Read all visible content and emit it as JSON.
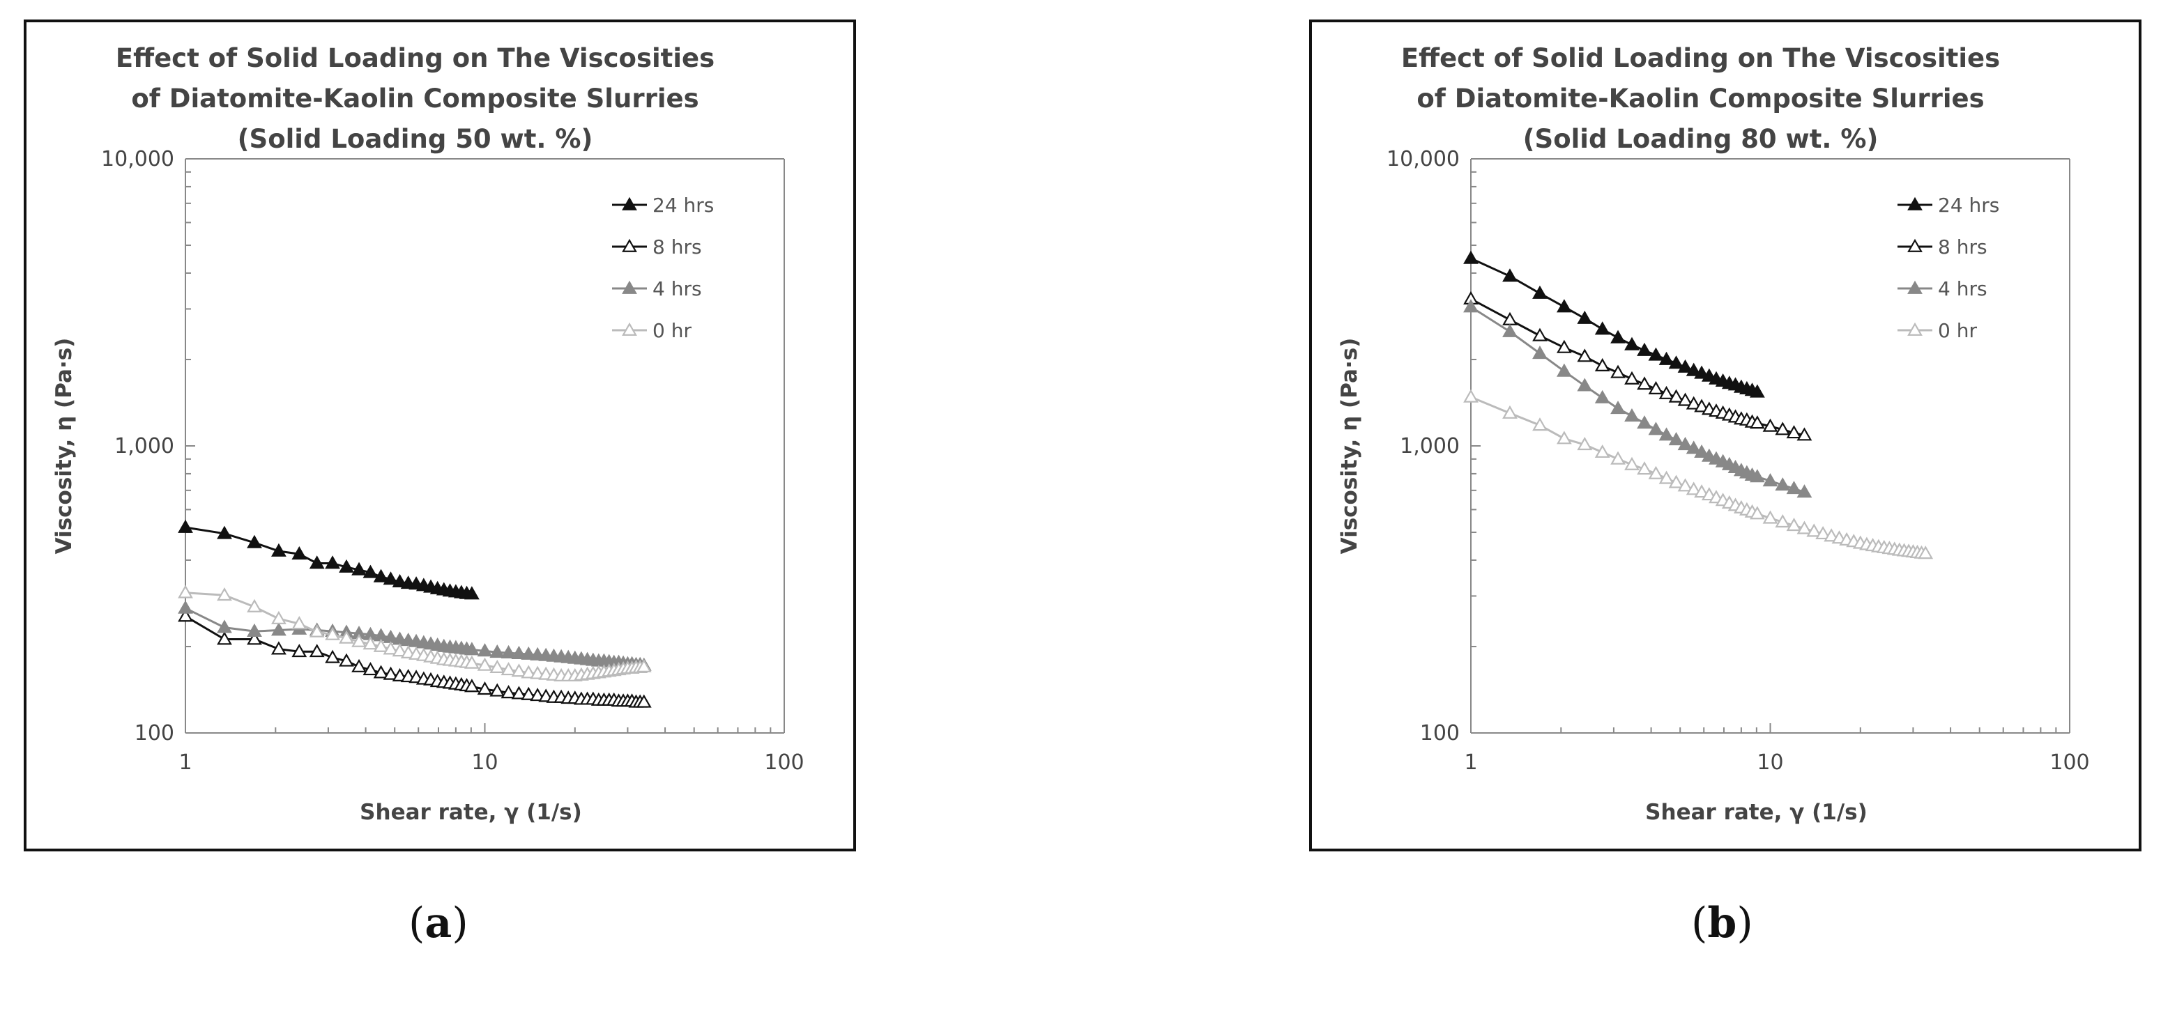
{
  "chart_data": [
    {
      "type": "line",
      "title": [
        "Effect of Solid Loading on The Viscosities",
        "of Diatomite-Kaolin Composite Slurries",
        "(Solid Loading 50 wt. %)"
      ],
      "xlabel": "Shear rate, γ (1/s)",
      "ylabel": "Viscosity, η (Pa·s)",
      "xscale": "log",
      "yscale": "log",
      "xlim": [
        1,
        100
      ],
      "ylim": [
        100,
        10000
      ],
      "xticks": [
        "1",
        "10",
        "100"
      ],
      "yticks": [
        "100",
        "1,000",
        "10,000"
      ],
      "grid": false,
      "legend_position": "top-right",
      "series": [
        {
          "name": "24 hrs",
          "color": "#111111",
          "marker": "filled-triangle",
          "x": [
            1,
            1.35,
            1.7,
            2.05,
            2.4,
            2.75,
            3.1,
            3.45,
            3.8,
            4.15,
            4.5,
            4.85,
            5.2,
            5.55,
            5.9,
            6.25,
            6.6,
            6.95,
            7.3,
            7.65,
            8,
            8.35,
            8.7,
            9.05
          ],
          "y": [
            520,
            495,
            460,
            430,
            420,
            390,
            390,
            378,
            370,
            362,
            350,
            343,
            336,
            332,
            330,
            326,
            322,
            318,
            315,
            312,
            310,
            308,
            306,
            305
          ]
        },
        {
          "name": "8 hrs",
          "color": "#111111",
          "marker": "open-triangle",
          "x": [
            1,
            1.35,
            1.7,
            2.05,
            2.4,
            2.75,
            3.1,
            3.45,
            3.8,
            4.15,
            4.5,
            4.85,
            5.2,
            5.55,
            5.9,
            6.25,
            6.6,
            6.95,
            7.3,
            7.65,
            8,
            8.35,
            8.7,
            9.05,
            10,
            11,
            12,
            13,
            14,
            15,
            16,
            17,
            18,
            19,
            20,
            21,
            22,
            23,
            24,
            25,
            26,
            27,
            28,
            29,
            30,
            31,
            32,
            33,
            34
          ],
          "y": [
            255,
            212,
            212,
            196,
            192,
            192,
            183,
            178,
            170,
            166,
            162,
            160,
            158,
            157,
            156,
            154,
            153,
            151,
            150,
            149,
            148,
            147,
            146,
            145,
            142,
            140,
            138,
            137,
            136,
            135,
            134,
            133,
            133,
            132,
            132,
            131,
            131,
            131,
            130,
            130,
            130,
            130,
            129,
            129,
            129,
            129,
            128,
            128,
            128
          ]
        },
        {
          "name": "4 hrs",
          "color": "#888888",
          "marker": "filled-triangle",
          "x": [
            1,
            1.35,
            1.7,
            2.05,
            2.4,
            2.75,
            3.1,
            3.45,
            3.8,
            4.15,
            4.5,
            4.85,
            5.2,
            5.55,
            5.9,
            6.25,
            6.6,
            6.95,
            7.3,
            7.65,
            8,
            8.35,
            8.7,
            9.05,
            10,
            11,
            12,
            13,
            14,
            15,
            16,
            17,
            18,
            19,
            20,
            21,
            22,
            23,
            24,
            25,
            26,
            27,
            28,
            29,
            30,
            31,
            32,
            33,
            34
          ],
          "y": [
            272,
            233,
            226,
            228,
            230,
            228,
            226,
            224,
            222,
            220,
            218,
            215,
            212,
            210,
            208,
            206,
            204,
            202,
            200,
            199,
            198,
            197,
            196,
            195,
            193,
            191,
            190,
            189,
            188,
            187,
            186,
            185,
            184,
            183,
            182,
            181,
            180,
            179,
            178,
            178,
            177,
            176,
            176,
            175,
            174,
            174,
            173,
            173,
            172
          ]
        },
        {
          "name": "0 hr",
          "color": "#bbbbbb",
          "marker": "open-triangle",
          "x": [
            1,
            1.35,
            1.7,
            2.05,
            2.4,
            2.75,
            3.1,
            3.45,
            3.8,
            4.15,
            4.5,
            4.85,
            5.2,
            5.55,
            5.9,
            6.25,
            6.6,
            6.95,
            7.3,
            7.65,
            8,
            8.35,
            8.7,
            9.05,
            10,
            11,
            12,
            13,
            14,
            15,
            16,
            17,
            18,
            19,
            20,
            21,
            22,
            23,
            24,
            25,
            26,
            27,
            28,
            29,
            30,
            31,
            32,
            33,
            34
          ],
          "y": [
            308,
            302,
            275,
            250,
            240,
            225,
            220,
            214,
            208,
            204,
            200,
            196,
            193,
            190,
            188,
            186,
            184,
            182,
            180,
            179,
            178,
            177,
            176,
            175,
            172,
            169,
            166,
            164,
            162,
            161,
            160,
            159,
            158,
            158,
            158,
            159,
            160,
            161,
            162,
            163,
            164,
            165,
            166,
            167,
            168,
            168,
            169,
            169,
            170
          ]
        }
      ]
    },
    {
      "type": "line",
      "title": [
        "Effect of Solid Loading on The Viscosities",
        "of Diatomite-Kaolin Composite Slurries",
        "(Solid Loading 80 wt. %)"
      ],
      "xlabel": "Shear rate, γ (1/s)",
      "ylabel": "Viscosity, η (Pa·s)",
      "xscale": "log",
      "yscale": "log",
      "xlim": [
        1,
        100
      ],
      "ylim": [
        100,
        10000
      ],
      "xticks": [
        "1",
        "10",
        "100"
      ],
      "yticks": [
        "100",
        "1,000",
        "10,000"
      ],
      "grid": false,
      "legend_position": "top-right",
      "series": [
        {
          "name": "24 hrs",
          "color": "#111111",
          "marker": "filled-triangle",
          "x": [
            1,
            1.35,
            1.7,
            2.05,
            2.4,
            2.75,
            3.1,
            3.45,
            3.8,
            4.15,
            4.5,
            4.85,
            5.2,
            5.55,
            5.9,
            6.25,
            6.6,
            6.95,
            7.3,
            7.65,
            8,
            8.35,
            8.7,
            9.05
          ],
          "y": [
            4500,
            3900,
            3400,
            3050,
            2780,
            2550,
            2380,
            2250,
            2150,
            2070,
            2000,
            1940,
            1880,
            1830,
            1790,
            1750,
            1710,
            1680,
            1650,
            1630,
            1600,
            1580,
            1560,
            1540
          ]
        },
        {
          "name": "8 hrs",
          "color": "#111111",
          "marker": "open-triangle",
          "x": [
            1,
            1.35,
            1.7,
            2.05,
            2.4,
            2.75,
            3.1,
            3.45,
            3.8,
            4.15,
            4.5,
            4.85,
            5.2,
            5.55,
            5.9,
            6.25,
            6.6,
            6.95,
            7.3,
            7.65,
            8,
            8.35,
            8.7,
            9.05,
            10,
            11,
            12,
            13
          ],
          "y": [
            3250,
            2750,
            2420,
            2200,
            2050,
            1900,
            1800,
            1710,
            1640,
            1580,
            1520,
            1480,
            1440,
            1400,
            1370,
            1340,
            1320,
            1300,
            1280,
            1260,
            1240,
            1230,
            1210,
            1200,
            1170,
            1140,
            1110,
            1090
          ]
        },
        {
          "name": "4 hrs",
          "color": "#888888",
          "marker": "filled-triangle",
          "x": [
            1,
            1.35,
            1.7,
            2.05,
            2.4,
            2.75,
            3.1,
            3.45,
            3.8,
            4.15,
            4.5,
            4.85,
            5.2,
            5.55,
            5.9,
            6.25,
            6.6,
            6.95,
            7.3,
            7.65,
            8,
            8.35,
            8.7,
            9.05,
            10,
            11,
            12,
            13
          ],
          "y": [
            3050,
            2500,
            2100,
            1820,
            1620,
            1470,
            1350,
            1270,
            1200,
            1140,
            1090,
            1050,
            1010,
            980,
            950,
            920,
            900,
            880,
            860,
            840,
            820,
            805,
            790,
            780,
            755,
            730,
            710,
            690
          ]
        },
        {
          "name": "0 hr",
          "color": "#bbbbbb",
          "marker": "open-triangle",
          "x": [
            1,
            1.35,
            1.7,
            2.05,
            2.4,
            2.75,
            3.1,
            3.45,
            3.8,
            4.15,
            4.5,
            4.85,
            5.2,
            5.55,
            5.9,
            6.25,
            6.6,
            6.95,
            7.3,
            7.65,
            8,
            8.35,
            8.7,
            9.05,
            10,
            11,
            12,
            13,
            14,
            15,
            16,
            17,
            18,
            19,
            20,
            21,
            22,
            23,
            24,
            25,
            26,
            27,
            28,
            29,
            30,
            31,
            32,
            33
          ],
          "y": [
            1480,
            1300,
            1180,
            1060,
            1010,
            950,
            900,
            860,
            830,
            800,
            770,
            745,
            725,
            705,
            690,
            675,
            660,
            645,
            632,
            620,
            608,
            598,
            588,
            580,
            560,
            543,
            528,
            515,
            504,
            494,
            485,
            477,
            470,
            464,
            458,
            453,
            449,
            445,
            442,
            439,
            436,
            433,
            431,
            429,
            427,
            425,
            423,
            422
          ]
        }
      ]
    }
  ],
  "captions": {
    "a": "a",
    "b": "b"
  }
}
